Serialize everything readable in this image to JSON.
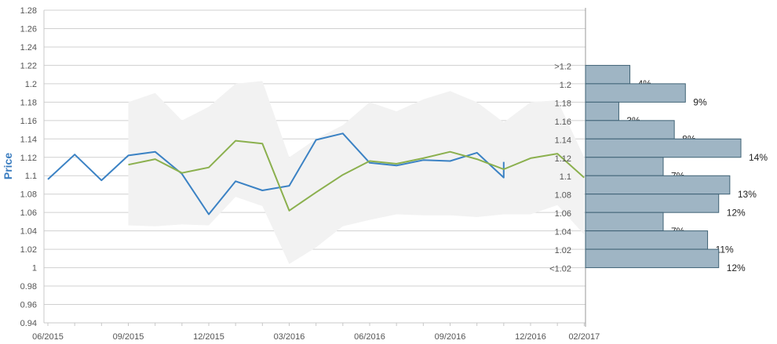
{
  "chart_data": {
    "type": "line",
    "ylabel": "Price",
    "ylim": [
      0.94,
      1.28
    ],
    "yticks": [
      "1.28",
      "1.26",
      "1.24",
      "1.22",
      "1.2",
      "1.18",
      "1.16",
      "1.14",
      "1.12",
      "1.1",
      "1.08",
      "1.06",
      "1.04",
      "1.02",
      "1",
      "0.98",
      "0.96",
      "0.94"
    ],
    "xticks": [
      "06/2015",
      "09/2015",
      "12/2015",
      "03/2016",
      "06/2016",
      "09/2016",
      "12/2016",
      "02/2017"
    ],
    "grid": true,
    "series": [
      {
        "color": "#3b82c4",
        "x": [
          "06/2015",
          "07/2015",
          "08/2015",
          "09/2015",
          "10/2015",
          "11/2015",
          "12/2015",
          "01/2016",
          "02/2016",
          "03/2016",
          "04/2016",
          "05/2016",
          "06/2016",
          "07/2016",
          "08/2016",
          "09/2016",
          "10/2016",
          "11/2016",
          "11/2016"
        ],
        "y": [
          1.096,
          1.123,
          1.095,
          1.122,
          1.126,
          1.102,
          1.058,
          1.094,
          1.084,
          1.089,
          1.139,
          1.146,
          1.114,
          1.111,
          1.117,
          1.116,
          1.125,
          1.098,
          1.115
        ]
      },
      {
        "color": "#8bb04e",
        "x": [
          "09/2015",
          "10/2015",
          "11/2015",
          "12/2015",
          "01/2016",
          "02/2016",
          "03/2016",
          "04/2016",
          "05/2016",
          "06/2016",
          "07/2016",
          "08/2016",
          "09/2016",
          "10/2016",
          "11/2016",
          "12/2016",
          "01/2017",
          "02/2017"
        ],
        "y": [
          1.112,
          1.118,
          1.103,
          1.109,
          1.138,
          1.135,
          1.062,
          1.082,
          1.101,
          1.116,
          1.113,
          1.119,
          1.126,
          1.118,
          1.107,
          1.119,
          1.124,
          1.098
        ]
      }
    ],
    "band": {
      "color": "#f2f2f2",
      "x": [
        "09/2015",
        "10/2015",
        "11/2015",
        "12/2015",
        "01/2016",
        "02/2016",
        "03/2016",
        "04/2016",
        "05/2016",
        "06/2016",
        "07/2016",
        "08/2016",
        "09/2016",
        "10/2016",
        "11/2016",
        "12/2016",
        "01/2017",
        "02/2017"
      ],
      "upper": [
        1.18,
        1.19,
        1.16,
        1.175,
        1.2,
        1.203,
        1.12,
        1.14,
        1.155,
        1.18,
        1.17,
        1.183,
        1.192,
        1.18,
        1.158,
        1.18,
        1.182,
        1.12
      ],
      "lower": [
        1.046,
        1.045,
        1.047,
        1.046,
        1.077,
        1.067,
        1.004,
        1.022,
        1.045,
        1.052,
        1.058,
        1.057,
        1.057,
        1.055,
        1.058,
        1.058,
        1.068,
        1.036
      ]
    },
    "histogram": {
      "color": "#9fb5c4",
      "categories": [
        ">1.2",
        "1.2",
        "1.18",
        "1.16",
        "1.14",
        "1.12",
        "1.1",
        "1.08",
        "1.06",
        "1.04",
        "1.02",
        "<1.02"
      ],
      "values": [
        4,
        9,
        3,
        8,
        14,
        7,
        13,
        12,
        7,
        11,
        12
      ],
      "labels": [
        "4%",
        "9%",
        "3%",
        "8%",
        "14%",
        "7%",
        "13%",
        "12%",
        "7%",
        "11%",
        "12%"
      ]
    }
  }
}
